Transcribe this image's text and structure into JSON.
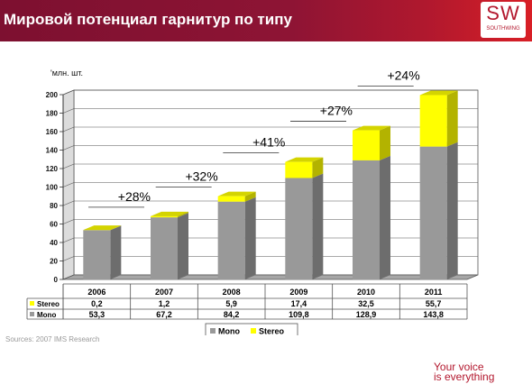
{
  "header": {
    "title": "Мировой потенциал гарнитур по типу",
    "logo_text": "SW",
    "logo_sub": "SOUTHWING"
  },
  "colors": {
    "mono": "#999999",
    "stereo": "#ffff00",
    "brand": "#b3182e"
  },
  "chart_data": {
    "type": "bar",
    "stacked": true,
    "unit_label": "'млн. шт.",
    "categories": [
      "2006",
      "2007",
      "2008",
      "2009",
      "2010",
      "2011"
    ],
    "series": [
      {
        "name": "Mono",
        "values": [
          53.3,
          67.2,
          84.2,
          109.8,
          128.9,
          143.8
        ],
        "labels": [
          "53,3",
          "67,2",
          "84,2",
          "109,8",
          "128,9",
          "143,8"
        ]
      },
      {
        "name": "Stereo",
        "values": [
          0.2,
          1.2,
          5.9,
          17.4,
          32.5,
          55.7
        ],
        "labels": [
          "0,2",
          "1,2",
          "5,9",
          "17,4",
          "32,5",
          "55,7"
        ]
      }
    ],
    "yticks": [
      0,
      20,
      40,
      60,
      80,
      100,
      120,
      140,
      160,
      180,
      200
    ],
    "ylim": [
      0,
      200
    ],
    "grid": true,
    "legend": "bottom",
    "growth_annotations": [
      {
        "text": "+28%",
        "category": "2007"
      },
      {
        "text": "+32%",
        "category": "2008"
      },
      {
        "text": "+41%",
        "category": "2009"
      },
      {
        "text": "+27%",
        "category": "2010"
      },
      {
        "text": "+24%",
        "category": "2011"
      }
    ]
  },
  "footer": {
    "source": "Sources: 2007 IMS Research",
    "tagline_1": "Your voice",
    "tagline_2": "is everything"
  }
}
